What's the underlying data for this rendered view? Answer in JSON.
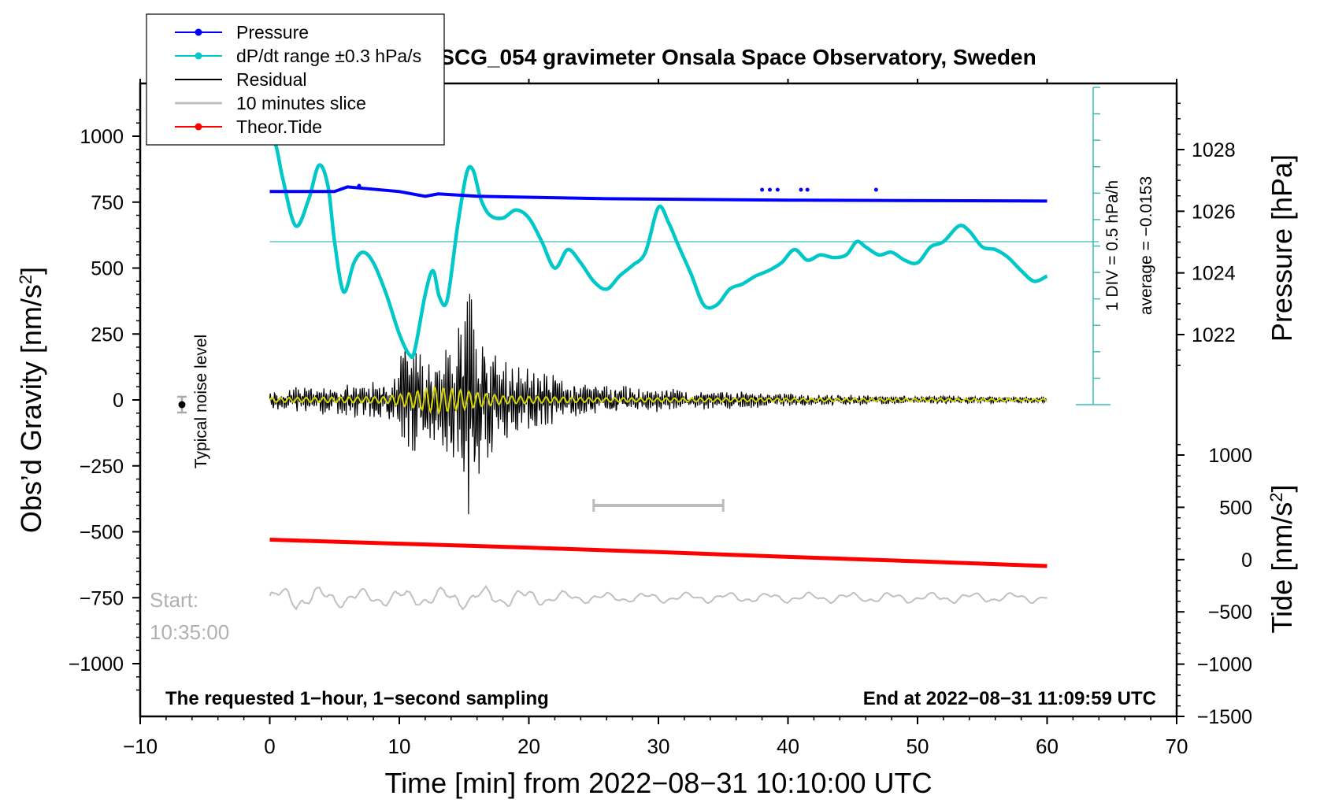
{
  "chart_data": {
    "type": "line",
    "title": "SCG_054 gravimeter Onsala Space Observatory, Sweden",
    "xlabel": "Time [min] from 2022−08−31 10:10:00 UTC",
    "ylabel_left_main": "Obs’d Gravity [nm/s",
    "ylabel_left_sup": "2",
    "ylabel_left_end": "]",
    "ylabel_right_pressure": "Pressure [hPa]",
    "ylabel_right_tide_main": "Tide [nm/s",
    "ylabel_right_tide_sup": "2",
    "ylabel_right_tide_end": "]",
    "xlim": [
      -10,
      70
    ],
    "ylim_left": [
      -1200,
      1200
    ],
    "x_ticks": [
      -10,
      0,
      10,
      20,
      30,
      40,
      50,
      60,
      70
    ],
    "x_tick_labels": [
      "−10",
      "0",
      "10",
      "20",
      "30",
      "40",
      "50",
      "60",
      "70"
    ],
    "y_ticks_left": [
      1000,
      750,
      500,
      250,
      0,
      -250,
      -500,
      -750,
      -1000
    ],
    "y_tick_labels_left": [
      "1000",
      "750",
      "500",
      "250",
      "0",
      "−250",
      "−500",
      "−750",
      "−1000"
    ],
    "pressure_ticks": [
      1028,
      1026,
      1024,
      1022
    ],
    "pressure_tick_labels": [
      "1028",
      "1026",
      "1024",
      "1022"
    ],
    "tide_ticks": [
      1000,
      500,
      0,
      -500,
      -1000,
      -1500
    ],
    "tide_tick_labels": [
      "1000",
      "500",
      "0",
      "−500",
      "−1000",
      "−1500"
    ],
    "legend": [
      {
        "label": "Pressure",
        "color": "#0000ff",
        "marker": true
      },
      {
        "label": "dP/dt range ±0.3 hPa/s",
        "color": "#00c8c8",
        "marker": true
      },
      {
        "label": "Residual",
        "color": "#000000",
        "marker": false
      },
      {
        "label": "10 minutes slice",
        "color": "#c0c0c0",
        "marker": false
      },
      {
        "label": "Theor.Tide",
        "color": "#ff0000",
        "marker": true
      }
    ],
    "series": [
      {
        "name": "Pressure",
        "color": "#0000ff",
        "unit": "hPa",
        "x": [
          0,
          5,
          6,
          10,
          12,
          13,
          16,
          26,
          40,
          60
        ],
        "values": [
          1026.5,
          1026.5,
          1026.6,
          1026.5,
          1026.4,
          1026.45,
          1026.4,
          1026.35,
          1026.32,
          1026.3
        ]
      },
      {
        "name": "dP/dt range ±0.3 hPa/s",
        "color": "#00c8c8",
        "unit": "nm/s2 (plot scale)",
        "x": [
          0,
          0.5,
          1,
          2,
          3,
          3.8,
          4.5,
          5,
          5.7,
          6.5,
          7.2,
          8,
          9,
          10,
          10.8,
          11.2,
          12,
          12.6,
          13.1,
          13.7,
          14.5,
          15.2,
          15.7,
          16.3,
          17,
          18,
          19,
          20,
          21,
          22,
          23,
          24,
          25,
          26,
          27,
          28,
          29,
          30,
          30.8,
          31.5,
          32.5,
          33.5,
          34.5,
          35.5,
          36.5,
          37.5,
          38.5,
          39.5,
          40.5,
          41.5,
          42.5,
          43.5,
          44.5,
          45.3,
          46,
          47,
          48,
          49,
          50,
          51,
          52,
          53.2,
          54,
          55,
          56,
          57,
          58,
          59,
          60
        ],
        "values": [
          990,
          960,
          840,
          660,
          760,
          890,
          810,
          600,
          410,
          520,
          560,
          520,
          400,
          250,
          170,
          190,
          400,
          490,
          390,
          380,
          660,
          860,
          870,
          760,
          700,
          690,
          720,
          690,
          600,
          500,
          570,
          520,
          450,
          420,
          470,
          510,
          560,
          730,
          670,
          590,
          480,
          360,
          360,
          420,
          440,
          470,
          490,
          520,
          570,
          530,
          550,
          540,
          550,
          600,
          580,
          550,
          560,
          530,
          520,
          580,
          600,
          660,
          640,
          580,
          570,
          540,
          490,
          450,
          470
        ]
      },
      {
        "name": "Residual",
        "color": "#000000",
        "unit": "nm/s2",
        "x": [
          0,
          9.5,
          10.3,
          13,
          14.5,
          15.2,
          15.6,
          16.5,
          18,
          25,
          40,
          60
        ],
        "values": [
          40,
          80,
          225,
          150,
          300,
          420,
          500,
          250,
          150,
          60,
          25,
          12
        ]
      },
      {
        "name": "10 minutes slice",
        "color": "#c0c0c0",
        "unit": "nm/s2 (offset -750)",
        "x": [
          25,
          35
        ],
        "values": [
          -400,
          -400
        ]
      },
      {
        "name": "Theor.Tide",
        "color": "#ff0000",
        "unit": "nm/s2",
        "x": [
          0,
          10,
          20,
          30,
          40,
          50,
          60
        ],
        "values": [
          165,
          150,
          135,
          118,
          100,
          83,
          65
        ]
      }
    ],
    "pressure_scale_labels": [
      "1 DIV = 0.5 hPa/h",
      "average = −0.0153"
    ],
    "noise_label": "Typical noise level",
    "start_labels": [
      "Start:",
      "10:35:00"
    ],
    "footer_left": "The requested 1−hour, 1−second sampling",
    "footer_right": "End at 2022−08−31 11:09:59 UTC"
  }
}
